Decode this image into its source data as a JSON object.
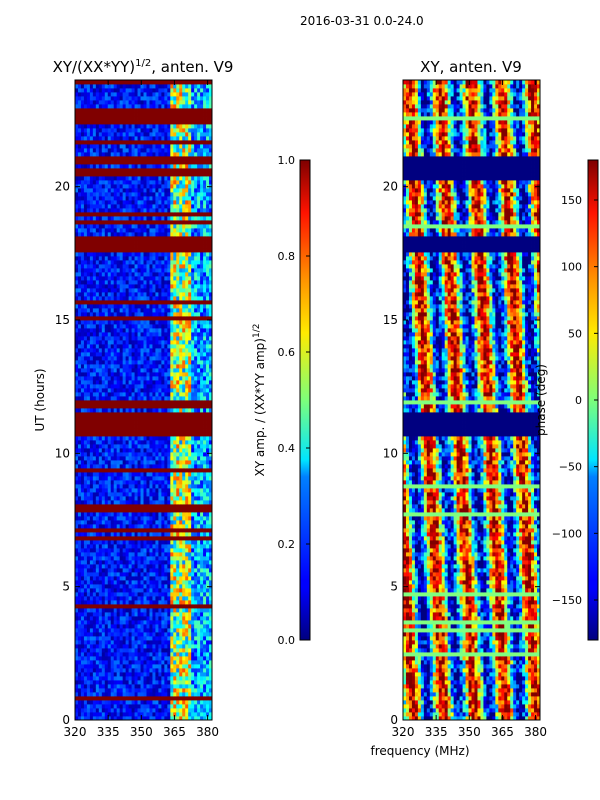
{
  "figure": {
    "suptitle": "2016-03-31 0.0-24.0",
    "shared_xlabel": "frequency (MHz)"
  },
  "chart_data": [
    {
      "type": "heatmap",
      "panel": "left",
      "title_main": "XY/(XX*YY)",
      "title_exponent": "1/2",
      "title_suffix": ", anten. V9",
      "xlabel": "",
      "ylabel": "UT (hours)",
      "xlim": [
        320,
        382
      ],
      "ylim": [
        0,
        24
      ],
      "xticks": [
        320,
        335,
        350,
        365,
        380
      ],
      "yticks": [
        0,
        5,
        10,
        15,
        20
      ],
      "colorbar": {
        "label_main": "XY amp. / (XX*YY amp)",
        "label_exponent": "1/2",
        "range": [
          0.0,
          1.0
        ],
        "ticks": [
          "0.0",
          "0.2",
          "0.4",
          "0.6",
          "0.8",
          "1.0"
        ],
        "colormap": "jet"
      },
      "saturated_bands_hours": [
        [
          10.7,
          11.6
        ],
        [
          17.5,
          18.1
        ],
        [
          20.9,
          21.2
        ],
        [
          22.3,
          23.0
        ]
      ],
      "bright_band_mhz": [
        363,
        372
      ]
    },
    {
      "type": "heatmap",
      "panel": "right",
      "title_main": "XY, anten. V9",
      "xlabel": "frequency (MHz)",
      "ylabel": "",
      "xlim": [
        320,
        382
      ],
      "ylim": [
        0,
        24
      ],
      "xticks": [
        320,
        335,
        350,
        365,
        380
      ],
      "yticks": [
        0,
        5,
        10,
        15,
        20
      ],
      "colorbar": {
        "label_main": "phase (deg)",
        "range": [
          -180,
          180
        ],
        "ticks": [
          "150",
          "100",
          "50",
          "0",
          "−50",
          "−100",
          "−150"
        ],
        "tick_values": [
          150,
          100,
          50,
          0,
          -50,
          -100,
          -150
        ],
        "colormap": "jet"
      },
      "masked_bands_hours": [
        [
          10.7,
          11.6
        ],
        [
          17.5,
          18.1
        ],
        [
          20.2,
          21.2
        ]
      ]
    }
  ],
  "colors": {
    "jet_low": "#00007f",
    "jet_mid": "#7fff7f",
    "jet_high": "#7f0000",
    "axis": "#000000"
  }
}
